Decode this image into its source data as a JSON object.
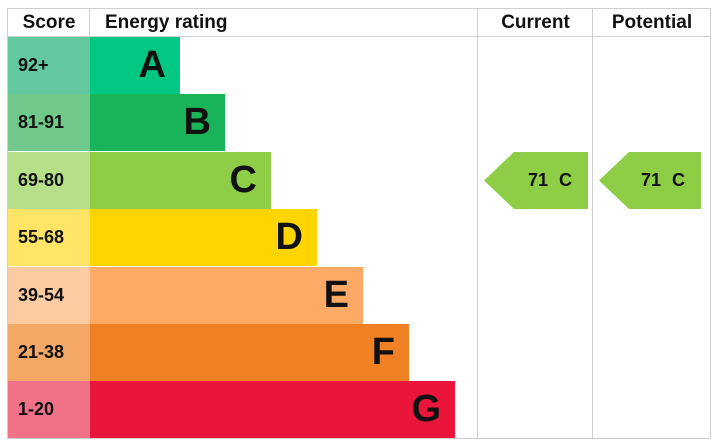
{
  "chart_data": {
    "type": "table",
    "headers": {
      "score": "Score",
      "rating": "Energy rating",
      "current": "Current",
      "potential": "Potential"
    },
    "bands": [
      {
        "score": "92+",
        "letter": "A",
        "color": "#00c781",
        "score_color": "#63c8a0"
      },
      {
        "score": "81-91",
        "letter": "B",
        "color": "#19b459",
        "score_color": "#70c98b"
      },
      {
        "score": "69-80",
        "letter": "C",
        "color": "#8dce46",
        "score_color": "#b7df8a"
      },
      {
        "score": "55-68",
        "letter": "D",
        "color": "#ffd500",
        "score_color": "#ffe466"
      },
      {
        "score": "39-54",
        "letter": "E",
        "color": "#fcaa65",
        "score_color": "#fdcba2"
      },
      {
        "score": "21-38",
        "letter": "F",
        "color": "#ef8023",
        "score_color": "#f4a866"
      },
      {
        "score": "1-20",
        "letter": "G",
        "color": "#e9153b",
        "score_color": "#f17188"
      }
    ],
    "current": {
      "value": 71,
      "letter": "C",
      "label": "71 C",
      "color": "#8dce46"
    },
    "potential": {
      "value": 71,
      "letter": "C",
      "label": "71 C",
      "color": "#8dce46"
    }
  }
}
